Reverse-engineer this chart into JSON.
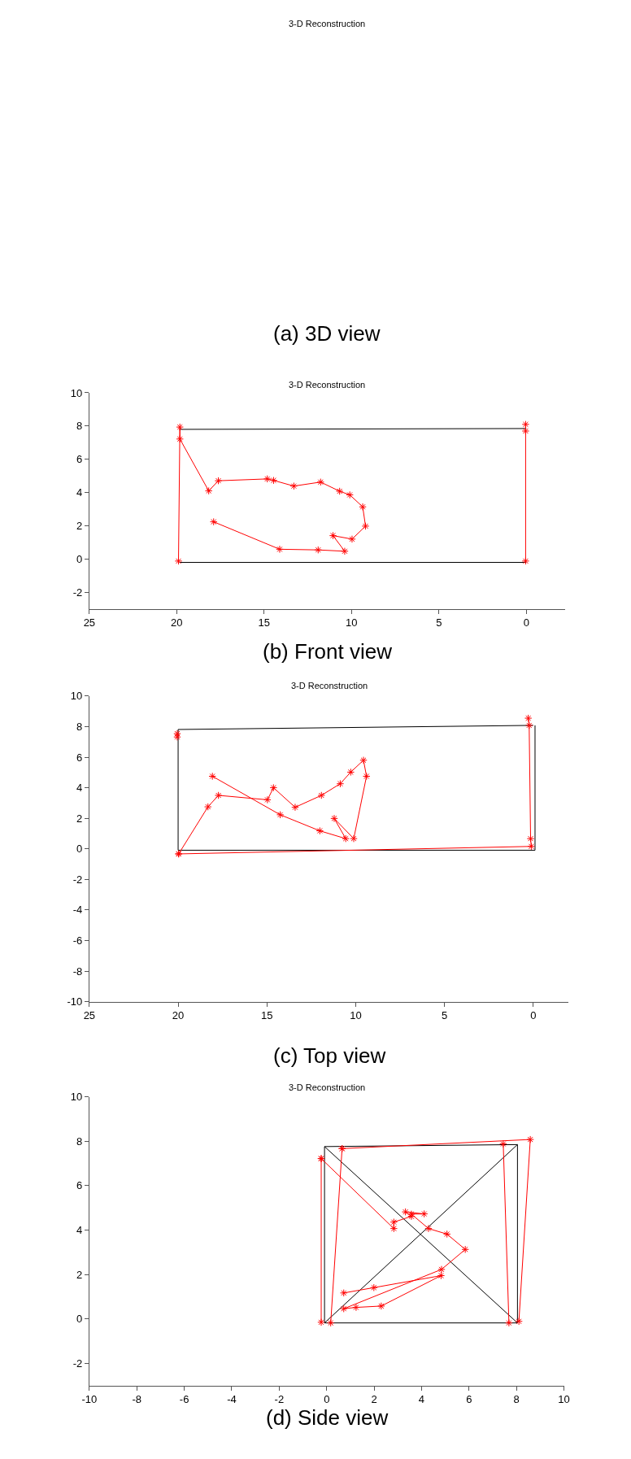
{
  "chart_data": [
    {
      "type": "other",
      "title": "3-D Reconstruction",
      "annotations": [
        "(a) 3D view"
      ]
    },
    {
      "type": "line",
      "title": "3-D Reconstruction",
      "annotations": [
        "(b) Front view"
      ],
      "xlim": [
        25,
        -2.2
      ],
      "xticks": [
        25,
        20,
        15,
        10,
        5,
        0
      ],
      "ylim": [
        -3,
        10
      ],
      "yticks": [
        -2,
        0,
        2,
        4,
        6,
        8,
        10
      ],
      "series": [
        {
          "color": "#000000",
          "marker": "none",
          "x": [
            19.85,
            0
          ],
          "values": [
            7.8,
            7.85
          ]
        },
        {
          "color": "#000000",
          "marker": "none",
          "x": [
            19.85,
            0
          ],
          "values": [
            -0.2,
            -0.2
          ]
        },
        {
          "color": "#ff0000",
          "marker": "cross",
          "x": [
            19.9,
            19.82,
            19.82,
            18.17,
            17.62,
            14.82,
            14.46,
            13.3,
            11.77,
            10.68,
            10.1,
            9.36,
            9.2,
            9.97,
            11.06,
            10.39,
            11.91,
            14.11,
            17.89
          ],
          "values": [
            -0.12,
            7.94,
            7.22,
            4.1,
            4.71,
            4.82,
            4.73,
            4.39,
            4.63,
            4.08,
            3.86,
            3.14,
            1.98,
            1.2,
            1.41,
            0.47,
            0.55,
            0.59,
            2.24
          ]
        },
        {
          "color": "#ff0000",
          "marker": "cross",
          "x": [
            0.04,
            0.04,
            0.04
          ],
          "values": [
            -0.12,
            7.7,
            8.1
          ]
        }
      ]
    },
    {
      "type": "line",
      "title": "3-D Reconstruction",
      "annotations": [
        "(c) Top view"
      ],
      "xlim": [
        25,
        -2
      ],
      "xticks": [
        25,
        20,
        15,
        10,
        5,
        0
      ],
      "ylim": [
        -10,
        10
      ],
      "yticks": [
        -10,
        -8,
        -6,
        -4,
        -2,
        0,
        2,
        4,
        6,
        8,
        10
      ],
      "series": [
        {
          "color": "#000000",
          "marker": "none",
          "x": [
            20,
            0
          ],
          "values": [
            7.81,
            8.08
          ]
        },
        {
          "color": "#000000",
          "marker": "none",
          "x": [
            -0.1,
            -0.1
          ],
          "values": [
            8.08,
            -0.09
          ]
        },
        {
          "color": "#000000",
          "marker": "none",
          "x": [
            -0.1,
            20
          ],
          "values": [
            -0.09,
            -0.09
          ]
        },
        {
          "color": "#000000",
          "marker": "none",
          "x": [
            20,
            20
          ],
          "values": [
            -0.09,
            7.81
          ]
        },
        {
          "color": "#ff0000",
          "marker": "cross",
          "x": [
            20.05,
            20.05
          ],
          "values": [
            7.32,
            7.54
          ]
        },
        {
          "color": "#ff0000",
          "marker": "cross",
          "x": [
            0.28,
            0.23,
            0.15,
            0.11,
            19.97
          ],
          "values": [
            8.55,
            8.08,
            0.67,
            0.16,
            -0.33
          ]
        },
        {
          "color": "#ff0000",
          "marker": "cross",
          "x": [
            19.97,
            18.32,
            17.73,
            14.97,
            14.63,
            13.41,
            11.93,
            10.87,
            10.28,
            9.56,
            9.39,
            10.11,
            11.21,
            10.56,
            12.02,
            14.25,
            18.07
          ],
          "values": [
            -0.33,
            2.75,
            3.5,
            3.21,
            4.0,
            2.72,
            3.5,
            4.26,
            5.02,
            5.8,
            4.75,
            0.67,
            1.99,
            0.67,
            1.18,
            2.23,
            4.75
          ]
        }
      ]
    },
    {
      "type": "line",
      "title": "3-D Reconstruction",
      "annotations": [
        "(d) Side view"
      ],
      "xlim": [
        -10,
        10
      ],
      "xticks": [
        -10,
        -8,
        -6,
        -4,
        -2,
        0,
        2,
        4,
        6,
        8,
        10
      ],
      "ylim": [
        -3,
        10
      ],
      "yticks": [
        -2,
        0,
        2,
        4,
        6,
        8,
        10
      ],
      "series": [
        {
          "color": "#000000",
          "marker": "none",
          "x": [
            -0.09,
            8.04,
            8.04,
            -0.09,
            -0.09,
            8.04
          ],
          "values": [
            7.76,
            7.85,
            -0.18,
            -0.18,
            7.76,
            -0.18
          ]
        },
        {
          "color": "#000000",
          "marker": "none",
          "x": [
            8.04,
            -0.09
          ],
          "values": [
            7.85,
            -0.18
          ]
        },
        {
          "color": "#ff0000",
          "marker": "cross",
          "x": [
            -0.23,
            -0.23
          ],
          "values": [
            -0.15,
            7.22
          ]
        },
        {
          "color": "#ff0000",
          "marker": "cross",
          "x": [
            0.17,
            0.65
          ],
          "values": [
            -0.18,
            7.67
          ]
        },
        {
          "color": "#ff0000",
          "marker": "cross",
          "x": [
            0.65,
            8.58,
            8.1
          ],
          "values": [
            7.67,
            8.08,
            -0.11
          ]
        },
        {
          "color": "#ff0000",
          "marker": "cross",
          "x": [
            7.44,
            7.68
          ],
          "values": [
            7.88,
            -0.18
          ]
        },
        {
          "color": "#ff0000",
          "marker": "cross",
          "x": [
            -0.23,
            2.83,
            2.83,
            3.57,
            3.32,
            4.11,
            3.57,
            4.29,
            5.07,
            5.84,
            4.84,
            0.72,
            1.24,
            2.3,
            4.82,
            1.99,
            0.72
          ],
          "values": [
            7.22,
            4.07,
            4.36,
            4.62,
            4.82,
            4.73,
            4.72,
            4.07,
            3.82,
            3.13,
            2.23,
            0.46,
            0.52,
            0.58,
            1.95,
            1.41,
            1.17
          ]
        }
      ]
    }
  ]
}
